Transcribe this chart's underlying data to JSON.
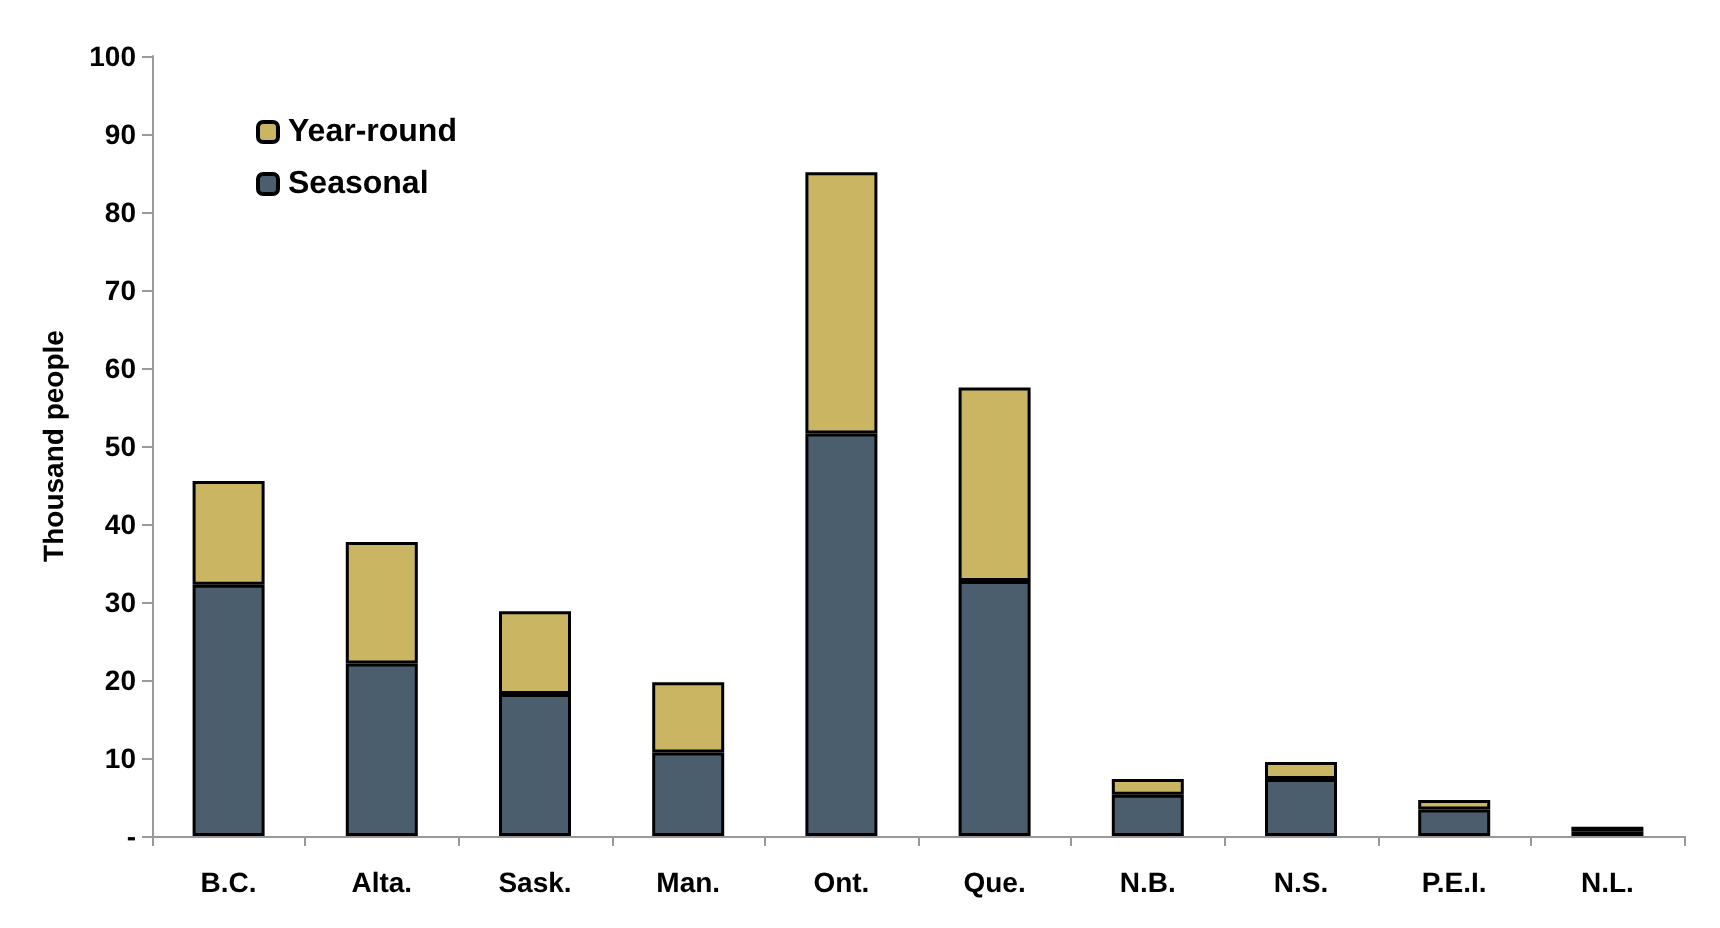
{
  "chart_data": {
    "type": "bar",
    "stacked": true,
    "ylabel": "Thousand people",
    "categories": [
      "B.C.",
      "Alta.",
      "Sask.",
      "Man.",
      "Ont.",
      "Que.",
      "N.B.",
      "N.S.",
      "P.E.I.",
      "N.L."
    ],
    "series": [
      {
        "name": "Seasonal",
        "color": "#4a5e6d",
        "values": [
          32.2,
          22.1,
          18.2,
          10.7,
          51.6,
          32.7,
          5.3,
          7.3,
          3.4,
          0.6
        ]
      },
      {
        "name": "Year-round",
        "color": "#c9b562",
        "values": [
          13.3,
          15.6,
          10.6,
          9.0,
          33.5,
          24.8,
          2.0,
          2.2,
          1.2,
          0.6
        ]
      }
    ],
    "ylim": [
      0,
      100
    ],
    "yticks": [
      {
        "value": 0,
        "label": "-"
      },
      10,
      20,
      30,
      40,
      50,
      60,
      70,
      80,
      90,
      100
    ],
    "grid": false,
    "legend": "top left"
  }
}
